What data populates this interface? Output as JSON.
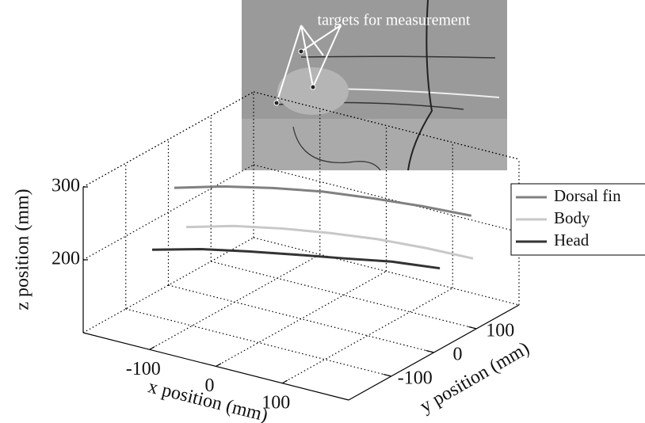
{
  "chart_data": {
    "type": "line3d",
    "annotation": "targets for measurement",
    "xlabel": "x position (mm)",
    "ylabel": "y position (mm)",
    "zlabel": "z position (mm)",
    "xlim": [
      -200,
      200
    ],
    "ylim": [
      -200,
      200
    ],
    "zlim": [
      100,
      300
    ],
    "xticks": [
      -100,
      0,
      100
    ],
    "yticks": [
      -100,
      0,
      100
    ],
    "zticks": [
      200,
      300
    ],
    "grid": true,
    "legend": "right",
    "series": [
      {
        "name": "Dorsal fin",
        "color": "#808080",
        "x": [
          -150,
          -100,
          -50,
          0,
          50,
          100,
          150
        ],
        "y": [
          -64,
          -26,
          12,
          51,
          89,
          128,
          166
        ],
        "values": [
          266,
          267,
          264,
          258,
          248,
          236,
          222
        ]
      },
      {
        "name": "Body",
        "color": "#c8c8c8",
        "x": [
          -150,
          -100,
          -50,
          0,
          50,
          100,
          150
        ],
        "y": [
          -36,
          -2,
          32,
          67,
          101,
          136,
          170
        ],
        "values": [
          203,
          205,
          202,
          196,
          188,
          176,
          162
        ]
      },
      {
        "name": "Head",
        "color": "#333333",
        "x": [
          -150,
          -100,
          -50,
          0,
          50,
          100,
          150
        ],
        "y": [
          -116,
          -81,
          -46,
          -12,
          23,
          57,
          92
        ],
        "values": [
          198,
          199,
          196,
          192,
          187,
          183,
          174
        ]
      }
    ]
  }
}
